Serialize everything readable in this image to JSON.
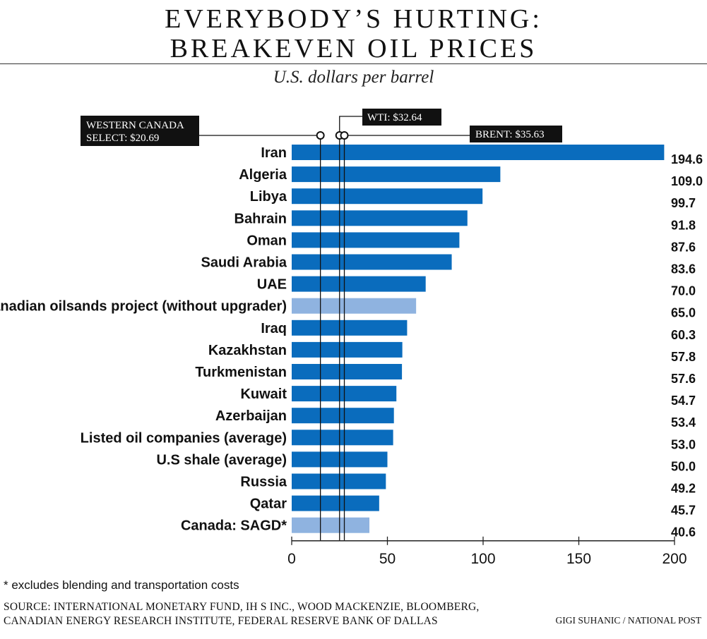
{
  "header": {
    "title_line1": "EVERYBODY’S HURTING:",
    "title_line2": "BREAKEVEN OIL PRICES",
    "subtitle": "U.S. dollars per barrel"
  },
  "chart_data": {
    "type": "bar",
    "orientation": "horizontal",
    "title": "EVERYBODY’S HURTING: BREAKEVEN OIL PRICES",
    "subtitle": "U.S. dollars per barrel",
    "xlim": [
      0,
      200
    ],
    "xticks": [
      0,
      50,
      100,
      150,
      200
    ],
    "grid": false,
    "categories": [
      "Iran",
      "Algeria",
      "Libya",
      "Bahrain",
      "Oman",
      "Saudi Arabia",
      "UAE",
      "Canadian oilsands project (without upgrader)",
      "Iraq",
      "Kazakhstan",
      "Turkmenistan",
      "Kuwait",
      "Azerbaijan",
      "Listed oil companies (average)",
      "U.S shale (average)",
      "Russia",
      "Qatar",
      "Canada: SAGD*"
    ],
    "values": [
      194.6,
      109.0,
      99.7,
      91.8,
      87.6,
      83.6,
      70.0,
      65.0,
      60.3,
      57.8,
      57.6,
      54.7,
      53.4,
      53.0,
      50.0,
      49.2,
      45.7,
      40.6
    ],
    "value_labels": [
      "194.6",
      "109.0",
      "99.7",
      "91.8",
      "87.6",
      "83.6",
      "70.0",
      "65.0",
      "60.3",
      "57.8",
      "57.6",
      "54.7",
      "53.4",
      "53.0",
      "50.0",
      "49.2",
      "45.7",
      "40.6"
    ],
    "highlight": [
      false,
      false,
      false,
      false,
      false,
      false,
      false,
      true,
      false,
      false,
      false,
      false,
      false,
      false,
      false,
      false,
      false,
      true
    ],
    "colors": {
      "bar": "#0a6cbd",
      "bar_highlight": "#8fb3e0",
      "axis": "#222222",
      "annotation_box": "#111111"
    },
    "reference_lines": [
      {
        "label": "WESTERN CANADA",
        "label2": "SELECT: $20.69",
        "value": 15.0
      },
      {
        "label": "WTI: $32.64",
        "label2": "",
        "value": 25.0
      },
      {
        "label": "BRENT: $35.63",
        "label2": "",
        "value": 27.5
      }
    ]
  },
  "footer": {
    "footnote": "* excludes blending and transportation costs",
    "source_line1": "SOURCE: INTERNATIONAL MONETARY FUND, IH S INC., WOOD MACKENZIE, BLOOMBERG,",
    "source_line2": "CANADIAN ENERGY RESEARCH INSTITUTE, FEDERAL RESERVE BANK OF DALLAS",
    "credit": "GIGI SUHANIC / NATIONAL POST"
  }
}
